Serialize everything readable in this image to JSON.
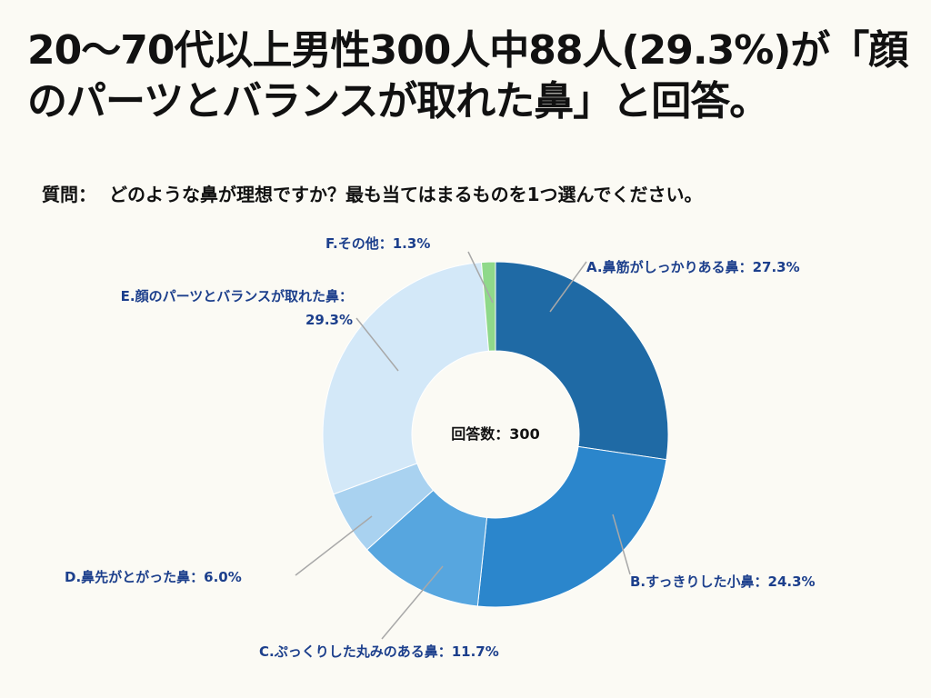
{
  "title": "20～70代以上男性300人中88人(29.3%)が「顔のパーツとバランスが取れた鼻」と回答。",
  "question": {
    "label": "質問：",
    "text": "どのような鼻が理想ですか？最も当てはまるものを1つ選んでください。"
  },
  "chart_data": {
    "type": "pie",
    "variant": "donut",
    "center_label": "回答数：300",
    "total": 300,
    "categories": [
      "A.鼻筋がしっかりある鼻",
      "B.すっきりした小鼻",
      "C.ぷっくりした丸みのある鼻",
      "D.鼻先がとがった鼻",
      "E.顔のパーツとバランスが取れた鼻",
      "F.その他"
    ],
    "values": [
      27.3,
      24.3,
      11.7,
      6.0,
      29.3,
      1.3
    ],
    "labels": [
      [
        "A.鼻筋がしっかりある鼻：27.3%"
      ],
      [
        "B.すっきりした小鼻：24.3%"
      ],
      [
        "C.ぷっくりした丸みのある鼻：11.7%"
      ],
      [
        "D.鼻先がとがった鼻：6.0%"
      ],
      [
        "E.顔のパーツとバランスが取れた鼻：",
        "29.3%"
      ],
      [
        "F.その他：1.3%"
      ]
    ],
    "colors": [
      "#1f6aa5",
      "#2b86cc",
      "#57a6df",
      "#a9d2f0",
      "#d3e8f8",
      "#8fd98a"
    ],
    "leader_color": "#a8a8a8",
    "label_color": "#1c3f8c"
  }
}
